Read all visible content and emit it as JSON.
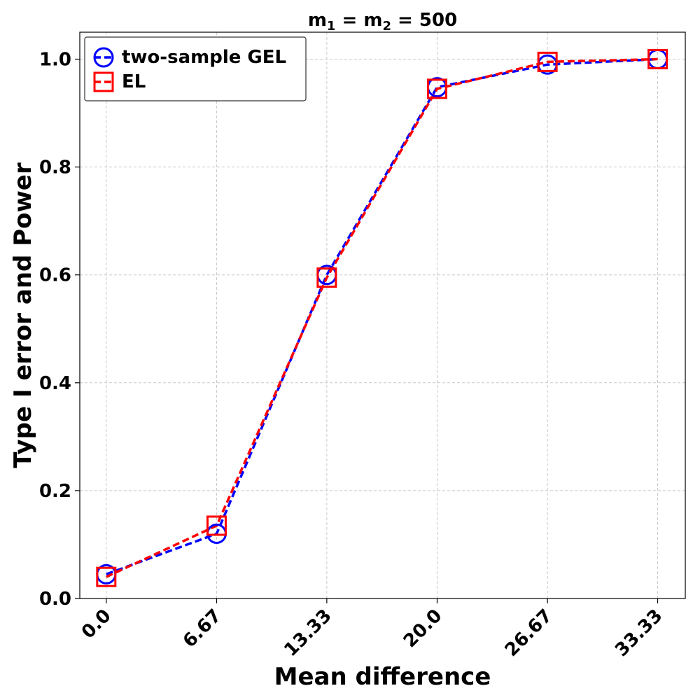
{
  "chart_data": {
    "type": "line",
    "title": {
      "m1_base": "m",
      "m1_sub": "1",
      "m2_base": "m",
      "m2_sub": "2",
      "equals": "=",
      "value": "500"
    },
    "xlabel": "Mean difference",
    "ylabel": "Type I error and Power",
    "categories": [
      "0.0",
      "6.67",
      "13.33",
      "20.0",
      "26.67",
      "33.33"
    ],
    "x": [
      0.0,
      6.67,
      13.33,
      20.0,
      26.67,
      33.33
    ],
    "xlim": [
      -1.6,
      35.0
    ],
    "ylim": [
      0.0,
      1.05
    ],
    "yticks": [
      0.0,
      0.2,
      0.4,
      0.6,
      0.8,
      1.0
    ],
    "ytick_labels": [
      "0.0",
      "0.2",
      "0.4",
      "0.6",
      "0.8",
      "1.0"
    ],
    "grid": true,
    "legend_position": "top-left",
    "series": [
      {
        "name": "two-sample GEL",
        "values": [
          0.045,
          0.12,
          0.6,
          0.948,
          0.99,
          1.0
        ],
        "color": "#0000ff",
        "marker": "circle",
        "linestyle": "dashed"
      },
      {
        "name": "EL",
        "values": [
          0.04,
          0.135,
          0.595,
          0.945,
          0.995,
          1.0
        ],
        "color": "#ff0000",
        "marker": "square",
        "linestyle": "dashed"
      }
    ]
  }
}
